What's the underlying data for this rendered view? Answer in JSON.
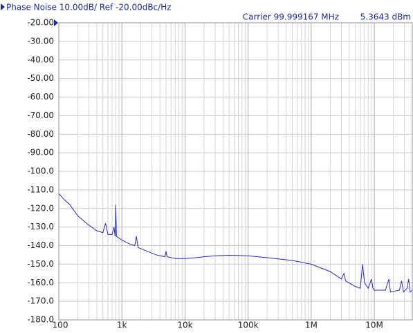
{
  "chart_data": {
    "type": "line",
    "title": "Phase Noise 10.00dB/ Ref -20.00dBc/Hz",
    "carrier": "Carrier 99.999167 MHz",
    "power": "5.3643 dBm",
    "xscale": "log",
    "grid": true,
    "xlim": [
      100,
      40000000
    ],
    "ylim": [
      -180,
      -20
    ],
    "xticks": [
      {
        "value": 100,
        "label": "100"
      },
      {
        "value": 1000,
        "label": "1k"
      },
      {
        "value": 10000,
        "label": "10k"
      },
      {
        "value": 100000,
        "label": "100k"
      },
      {
        "value": 1000000,
        "label": "1M"
      },
      {
        "value": 10000000,
        "label": "10M"
      }
    ],
    "xminor": [
      200,
      300,
      400,
      500,
      600,
      700,
      800,
      900,
      2000,
      3000,
      4000,
      5000,
      6000,
      7000,
      8000,
      9000,
      20000,
      30000,
      40000,
      50000,
      60000,
      70000,
      80000,
      90000,
      200000,
      300000,
      400000,
      500000,
      600000,
      700000,
      800000,
      900000,
      2000000,
      3000000,
      4000000,
      5000000,
      6000000,
      7000000,
      8000000,
      9000000,
      20000000,
      30000000
    ],
    "yticks": [
      {
        "value": -20,
        "label": "-20.00"
      },
      {
        "value": -30,
        "label": "-30.00"
      },
      {
        "value": -40,
        "label": "-40.00"
      },
      {
        "value": -50,
        "label": "-50.00"
      },
      {
        "value": -60,
        "label": "-60.00"
      },
      {
        "value": -70,
        "label": "-70.00"
      },
      {
        "value": -80,
        "label": "-80.00"
      },
      {
        "value": -90,
        "label": "-90.00"
      },
      {
        "value": -100,
        "label": "-100.0"
      },
      {
        "value": -110,
        "label": "-110.0"
      },
      {
        "value": -120,
        "label": "-120.0"
      },
      {
        "value": -130,
        "label": "-130.0"
      },
      {
        "value": -140,
        "label": "-140.0"
      },
      {
        "value": -150,
        "label": "-150.0"
      },
      {
        "value": -160,
        "label": "-160.0"
      },
      {
        "value": -170,
        "label": "-170.0"
      },
      {
        "value": -180,
        "label": "-180.0"
      }
    ],
    "series": [
      {
        "color": "#2626d0",
        "x": [
          100,
          120,
          150,
          200,
          300,
          400,
          500,
          550,
          600,
          700,
          750,
          780,
          800,
          820,
          900,
          1000,
          1300,
          1600,
          1700,
          1800,
          2500,
          3500,
          4800,
          5000,
          5200,
          7000,
          10000,
          15000,
          20000,
          30000,
          50000,
          100000,
          200000,
          500000,
          1000000,
          2000000,
          3000000,
          3300000,
          3500000,
          5000000,
          6000000,
          6500000,
          7000000,
          8000000,
          9000000,
          9500000,
          10000000,
          15000000,
          17000000,
          18000000,
          25000000,
          27000000,
          29000000,
          33000000,
          35000000,
          37000000,
          40000000
        ],
        "values": [
          -112,
          -115,
          -118,
          -124,
          -129,
          -132,
          -133,
          -128,
          -134,
          -134,
          -130,
          -135,
          -118,
          -135,
          -136,
          -137,
          -139,
          -140,
          -135,
          -141,
          -143,
          -145,
          -146,
          -143,
          -146,
          -147,
          -147,
          -146.5,
          -146,
          -145.5,
          -145.2,
          -145.5,
          -146.5,
          -148,
          -150,
          -154,
          -158,
          -155,
          -159,
          -162,
          -163,
          -150,
          -160,
          -163,
          -158,
          -163,
          -164,
          -164,
          -158,
          -165,
          -164,
          -159,
          -165,
          -163,
          -158,
          -165,
          -164
        ]
      }
    ]
  }
}
